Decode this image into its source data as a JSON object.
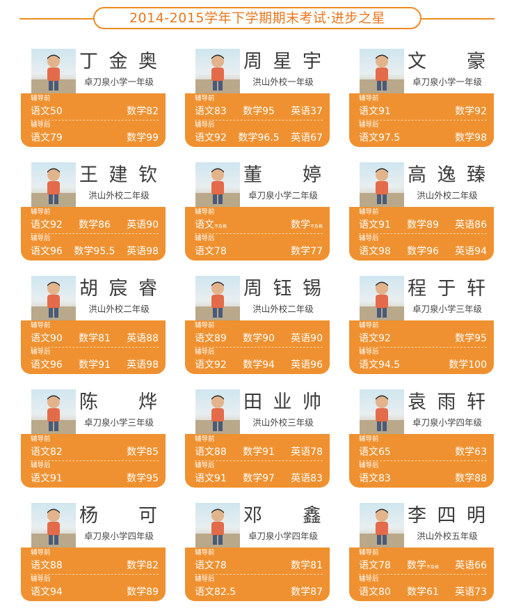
{
  "header": {
    "title": "2014-2015学年下学期期末考试·进步之星"
  },
  "labels": {
    "before": "辅导前",
    "after": "辅导后"
  },
  "colors": {
    "accent": "#ef9130",
    "title": "#e9761a"
  },
  "students": [
    {
      "name": "丁金奥",
      "school": "卓刀泉小学一年级",
      "photo": "student-photo",
      "before": [
        "语文50",
        "数学82"
      ],
      "after": [
        "语文79",
        "数学99"
      ]
    },
    {
      "name": "周星宇",
      "school": "洪山外校一年级",
      "photo": "student-photo",
      "before": [
        "语文83",
        "数学95",
        "英语37"
      ],
      "after": [
        "语文92",
        "数学96.5",
        "英语67"
      ]
    },
    {
      "name": "文豪",
      "school": "卓刀泉小学一年级",
      "photo": "student-photo",
      "before": [
        "语文91",
        "数学92"
      ],
      "after": [
        "语文97.5",
        "数学98"
      ]
    },
    {
      "name": "王建钦",
      "school": "洪山外校二年级",
      "photo": "student-photo",
      "before": [
        "语文92",
        "数学86",
        "英语90"
      ],
      "after": [
        "语文96",
        "数学95.5",
        "英语98"
      ]
    },
    {
      "name": "董婷",
      "school": "卓刀泉小学二年级",
      "photo": "student-photo",
      "before": [
        "语文",
        "数学"
      ],
      "before_note": "不及格",
      "after": [
        "语文78",
        "数学77"
      ]
    },
    {
      "name": "高逸臻",
      "school": "洪山外校二年级",
      "photo": "student-photo",
      "before": [
        "语文91",
        "数学89",
        "英语86"
      ],
      "after": [
        "语文98",
        "数学96",
        "英语94"
      ]
    },
    {
      "name": "胡宸睿",
      "school": "洪山外校二年级",
      "photo": "student-photo",
      "before": [
        "语文90",
        "数学81",
        "英语88"
      ],
      "after": [
        "语文96",
        "数学91",
        "英语98"
      ]
    },
    {
      "name": "周钰锡",
      "school": "洪山外校二年级",
      "photo": "student-photo",
      "before": [
        "语文89",
        "数学90",
        "英语90"
      ],
      "after": [
        "语文92",
        "数学94",
        "英语96"
      ]
    },
    {
      "name": "程于轩",
      "school": "卓刀泉小学三年级",
      "photo": "student-photo",
      "before": [
        "语文92",
        "数学95"
      ],
      "after": [
        "语文94.5",
        "数学100"
      ]
    },
    {
      "name": "陈烨",
      "school": "卓刀泉小学三年级",
      "photo": "student-photo",
      "before": [
        "语文82",
        "数学85"
      ],
      "after": [
        "语文91",
        "数学95"
      ]
    },
    {
      "name": "田业帅",
      "school": "洪山外校三年级",
      "photo": "student-photo",
      "before": [
        "语文88",
        "数学91",
        "英语78"
      ],
      "after": [
        "语文91",
        "数学97",
        "英语83"
      ]
    },
    {
      "name": "袁雨轩",
      "school": "卓刀泉小学四年级",
      "photo": "student-photo",
      "before": [
        "语文65",
        "数学63"
      ],
      "after": [
        "语文83",
        "数学88"
      ]
    },
    {
      "name": "杨可",
      "school": "卓刀泉小学四年级",
      "photo": "student-photo",
      "before": [
        "语文88",
        "数学82"
      ],
      "after": [
        "语文94",
        "数学89"
      ]
    },
    {
      "name": "邓鑫",
      "school": "卓刀泉小学四年级",
      "photo": "student-photo",
      "before": [
        "语文78",
        "数学81"
      ],
      "after": [
        "语文82.5",
        "数学87"
      ]
    },
    {
      "name": "李四明",
      "school": "洪山外校五年级",
      "photo": "student-photo",
      "before": [
        "语文78",
        "数学",
        "英语66"
      ],
      "before_note_math": "不及格",
      "after": [
        "语文80",
        "数学61",
        "英语73"
      ]
    }
  ]
}
